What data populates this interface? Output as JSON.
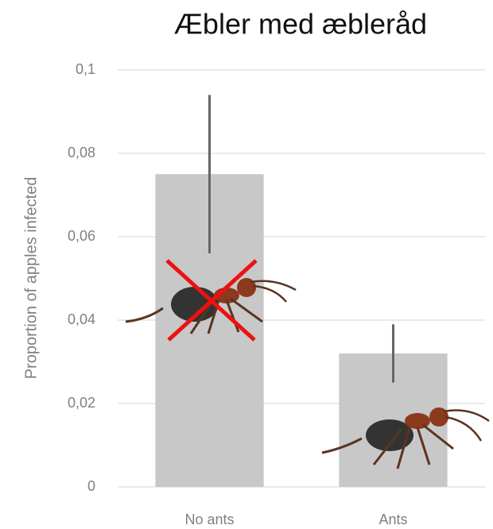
{
  "chart_data": {
    "type": "bar",
    "title": "Æbler med æbleråd",
    "y_label": "Proportion of apples infected",
    "categories": [
      "No ants",
      "Ants"
    ],
    "values": [
      0.075,
      0.032
    ],
    "errors": [
      0.019,
      0.007
    ],
    "color": "#c8c8c8",
    "error_color": "#666666",
    "ylim": [
      0,
      0.1
    ],
    "yticks": [
      0,
      {
        "value": 0.02,
        "label": "0,02"
      },
      {
        "value": 0.04,
        "label": "0,04"
      },
      {
        "value": 0.06,
        "label": "0,06"
      },
      {
        "value": 0.08,
        "label": "0,08"
      },
      {
        "value": 0.1,
        "label": "0,1"
      }
    ],
    "grid": true
  }
}
